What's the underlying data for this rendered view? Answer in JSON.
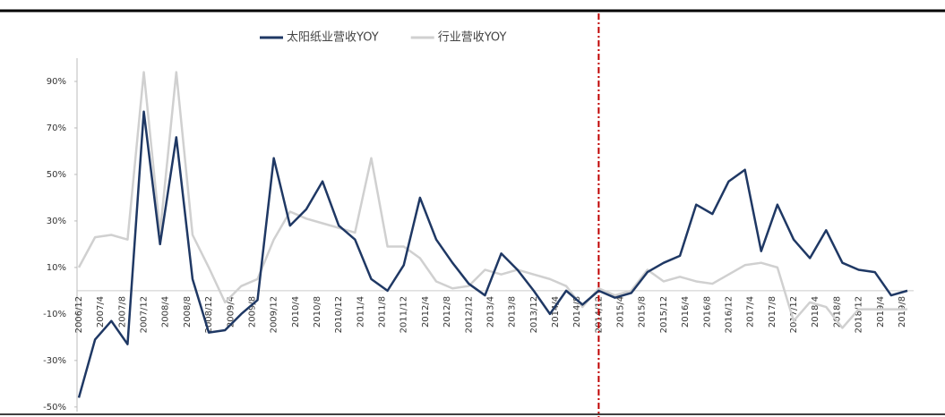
{
  "chart_data": {
    "type": "line",
    "xticks": [
      "2006/12",
      "2007/4",
      "2007/8",
      "2007/12",
      "2008/4",
      "2008/8",
      "2008/12",
      "2009/4",
      "2009/8",
      "2009/12",
      "2010/4",
      "2010/8",
      "2010/12",
      "2011/4",
      "2011/8",
      "2011/12",
      "2012/4",
      "2012/8",
      "2012/12",
      "2013/4",
      "2013/8",
      "2013/12",
      "2014/4",
      "2014/8",
      "2014/12",
      "2015/4",
      "2015/8",
      "2015/12",
      "2016/4",
      "2016/8",
      "2016/12",
      "2017/4",
      "2017/8",
      "2017/12",
      "2018/4",
      "2018/8",
      "2018/12",
      "2019/4",
      "2019/8"
    ],
    "x": [
      "2006/12",
      "2007/3",
      "2007/6",
      "2007/9",
      "2007/12",
      "2008/3",
      "2008/6",
      "2008/9",
      "2008/12",
      "2009/3",
      "2009/6",
      "2009/9",
      "2009/12",
      "2010/3",
      "2010/6",
      "2010/9",
      "2010/12",
      "2011/3",
      "2011/6",
      "2011/9",
      "2011/12",
      "2012/3",
      "2012/6",
      "2012/9",
      "2012/12",
      "2013/3",
      "2013/6",
      "2013/9",
      "2013/12",
      "2014/3",
      "2014/6",
      "2014/9",
      "2014/12",
      "2015/3",
      "2015/6",
      "2015/9",
      "2015/12",
      "2016/3",
      "2016/6",
      "2016/9",
      "2016/12",
      "2017/3",
      "2017/6",
      "2017/9",
      "2017/12",
      "2018/3",
      "2018/6",
      "2018/9",
      "2018/12",
      "2019/3",
      "2019/6",
      "2019/9"
    ],
    "series": [
      {
        "name": "太阳纸业营收YOY",
        "color": "#1f3864",
        "width": 2.5,
        "values": [
          -46,
          -21,
          -13,
          -23,
          77,
          20,
          66,
          5,
          -18,
          -17,
          -10,
          -4,
          57,
          28,
          35,
          47,
          28,
          22,
          5,
          0,
          11,
          40,
          22,
          12,
          3,
          -2,
          16,
          9,
          0,
          -10,
          0,
          -6,
          0,
          -3,
          -1,
          8,
          12,
          15,
          37,
          33,
          47,
          52,
          17,
          37,
          22,
          14,
          26,
          12,
          9,
          8,
          -2,
          0
        ]
      },
      {
        "name": "行业营收YOY",
        "color": "#d0d0d0",
        "width": 2.5,
        "values": [
          10,
          23,
          24,
          22,
          94,
          25,
          94,
          24,
          10,
          -5,
          2,
          5,
          22,
          34,
          31,
          29,
          27,
          25,
          57,
          19,
          19,
          14,
          4,
          1,
          2,
          9,
          7,
          9,
          7,
          5,
          2,
          -7,
          1,
          -2,
          0,
          9,
          4,
          6,
          4,
          3,
          7,
          11,
          12,
          10,
          -13,
          -5,
          -7,
          -16,
          -8,
          -8,
          -8,
          -8
        ]
      }
    ],
    "ylim": [
      -52,
      100
    ],
    "yticks": [
      {
        "value": -50,
        "label": "-50%"
      },
      {
        "value": -30,
        "label": "-30%"
      },
      {
        "value": -10,
        "label": "-10%"
      },
      {
        "value": 10,
        "label": "10%"
      },
      {
        "value": 30,
        "label": "30%"
      },
      {
        "value": 50,
        "label": "50%"
      },
      {
        "value": 70,
        "label": "70%"
      },
      {
        "value": 90,
        "label": "90%"
      }
    ],
    "reference_line": {
      "x": "2014/12",
      "color": "#c00000"
    },
    "legend": "top"
  }
}
